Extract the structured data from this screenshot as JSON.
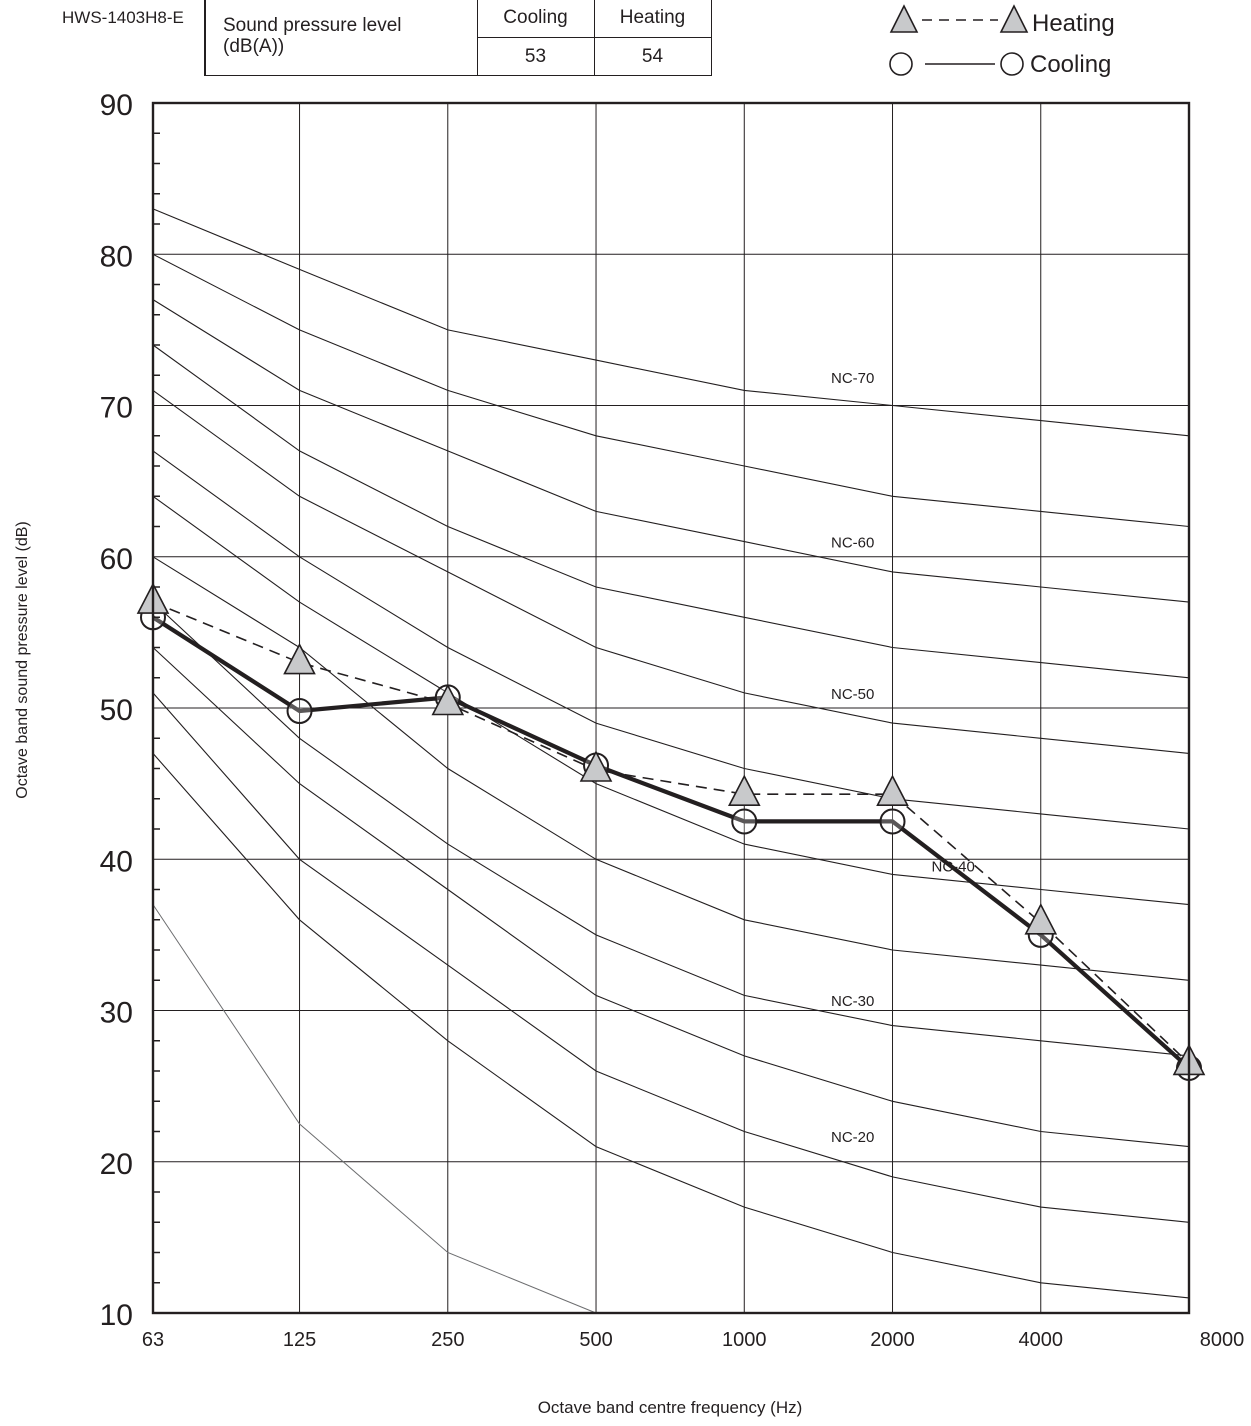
{
  "model": "HWS-1403H8-E",
  "spl_table": {
    "label_line1": "Sound pressure level",
    "label_line2": "(dB(A))",
    "headers": [
      "Cooling",
      "Heating"
    ],
    "values": [
      "53",
      "54"
    ]
  },
  "legend": {
    "heating": "Heating",
    "cooling": "Cooling"
  },
  "chart_data": {
    "type": "line",
    "xlabel": "Octave band centre frequency (Hz)",
    "ylabel": "Octave band sound pressure level  (dB)",
    "x": [
      63,
      125,
      250,
      500,
      1000,
      2000,
      4000,
      8000
    ],
    "x_scale": "log",
    "ylim": [
      10,
      90
    ],
    "yticks": [
      10,
      20,
      30,
      40,
      50,
      60,
      70,
      80,
      90
    ],
    "grid": true,
    "legend_position": "top-right",
    "series": [
      {
        "name": "Heating",
        "marker": "triangle",
        "line": "dashed",
        "values": [
          57,
          53,
          50.3,
          45.9,
          44.3,
          44.3,
          35.8,
          26.5
        ]
      },
      {
        "name": "Cooling",
        "marker": "circle",
        "line": "solid",
        "values": [
          56,
          49.8,
          50.7,
          46.2,
          42.5,
          42.5,
          35,
          26.2
        ]
      }
    ],
    "nc_curves": [
      {
        "values": [
          83,
          79,
          75,
          73,
          71,
          70,
          69,
          68
        ]
      },
      {
        "values": [
          80,
          75,
          71,
          68,
          66,
          64,
          63,
          62
        ]
      },
      {
        "values": [
          77,
          71,
          67,
          63,
          61,
          59,
          58,
          57
        ]
      },
      {
        "values": [
          74,
          67,
          62,
          58,
          56,
          54,
          53,
          52
        ]
      },
      {
        "values": [
          71,
          64,
          59,
          54,
          51,
          49,
          48,
          47
        ]
      },
      {
        "values": [
          67,
          60,
          54,
          49,
          46,
          44,
          43,
          42
        ]
      },
      {
        "values": [
          64,
          57,
          51,
          45,
          41,
          39,
          38,
          37
        ]
      },
      {
        "values": [
          60,
          54,
          46,
          40,
          36,
          34,
          33,
          32
        ]
      },
      {
        "values": [
          57,
          48,
          41,
          35,
          31,
          29,
          28,
          27
        ]
      },
      {
        "values": [
          54,
          45,
          38,
          31,
          27,
          24,
          22,
          21
        ]
      },
      {
        "values": [
          51,
          40,
          33,
          26,
          22,
          19,
          17,
          16
        ]
      },
      {
        "values": [
          47,
          36,
          28,
          21,
          17,
          14,
          12,
          11
        ]
      },
      {
        "values": [
          37,
          22.5,
          14,
          10
        ]
      }
    ],
    "nc_labels": [
      {
        "text": "NC-70",
        "x": 1500,
        "y": 71.5
      },
      {
        "text": "NC-60",
        "x": 1500,
        "y": 60.6
      },
      {
        "text": "NC-50",
        "x": 1500,
        "y": 50.6
      },
      {
        "text": "NC-40",
        "x": 2400,
        "y": 39.2
      },
      {
        "text": "NC-30",
        "x": 1500,
        "y": 30.3
      },
      {
        "text": "NC-20",
        "x": 1500,
        "y": 21.3
      }
    ]
  }
}
